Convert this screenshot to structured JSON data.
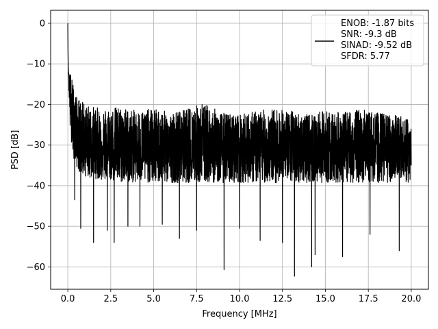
{
  "chart_data": {
    "type": "line",
    "title": "",
    "xlabel": "Frequency [MHz]",
    "ylabel": "PSD [dB]",
    "xlim": [
      -1.0,
      21.0
    ],
    "ylim": [
      -65.5,
      3.2
    ],
    "x_ticks": [
      0.0,
      2.5,
      5.0,
      7.5,
      10.0,
      12.5,
      15.0,
      17.5,
      20.0
    ],
    "x_tick_labels": [
      "0.0",
      "2.5",
      "5.0",
      "7.5",
      "10.0",
      "12.5",
      "15.0",
      "17.5",
      "20.0"
    ],
    "y_ticks": [
      0,
      -10,
      -20,
      -30,
      -40,
      -50,
      -60
    ],
    "y_tick_labels": [
      "0",
      "−10",
      "−20",
      "−30",
      "−40",
      "−50",
      "−60"
    ],
    "grid": true,
    "legend_position": "top-right",
    "series": [
      {
        "name": "ENOB: -1.87 bits\nSNR: -9.3 dB\nSINAD: -9.52 dB\nSFDR: 5.77",
        "color": "#000000",
        "x": [
          0.0,
          0.02,
          0.05,
          0.08,
          0.1,
          0.15,
          0.2,
          0.3,
          0.4,
          0.5,
          0.6,
          0.8,
          1.0,
          1.3,
          1.6,
          2.0,
          2.5,
          3.0,
          3.5,
          4.0,
          5.0,
          6.0,
          7.0,
          8.0,
          9.0,
          10.0,
          11.0,
          12.0,
          13.0,
          14.0,
          15.0,
          16.0,
          17.0,
          18.0,
          19.0,
          20.0
        ],
        "y": [
          0.0,
          -5.0,
          -12.0,
          -14.0,
          -16.0,
          -19.0,
          -22.0,
          -24.0,
          -26.0,
          -27.0,
          -28.0,
          -29.0,
          -29.5,
          -30.0,
          -30.0,
          -30.5,
          -30.5,
          -31.0,
          -31.0,
          -31.0,
          -31.0,
          -31.0,
          -31.0,
          -31.0,
          -31.0,
          -31.0,
          -31.0,
          -31.0,
          -31.0,
          -31.0,
          -31.0,
          -31.0,
          -31.0,
          -31.0,
          -31.0,
          -31.0
        ]
      }
    ],
    "envelope_upper": [
      [
        0.15,
        -12.0
      ],
      [
        0.5,
        -18.0
      ],
      [
        1.0,
        -20.0
      ],
      [
        2.0,
        -21.0
      ],
      [
        3.0,
        -20.5
      ],
      [
        4.0,
        -21.5
      ],
      [
        5.0,
        -21.0
      ],
      [
        6.0,
        -22.0
      ],
      [
        7.0,
        -21.0
      ],
      [
        7.8,
        -19.5
      ],
      [
        9.0,
        -22.0
      ],
      [
        10.0,
        -22.5
      ],
      [
        11.0,
        -21.5
      ],
      [
        12.0,
        -21.0
      ],
      [
        13.0,
        -21.5
      ],
      [
        14.0,
        -22.5
      ],
      [
        15.0,
        -21.5
      ],
      [
        16.0,
        -22.0
      ],
      [
        17.0,
        -21.0
      ],
      [
        18.0,
        -22.0
      ],
      [
        19.0,
        -22.5
      ],
      [
        20.0,
        -23.5
      ]
    ],
    "deep_nulls": [
      [
        0.4,
        -43.5
      ],
      [
        0.75,
        -50.5
      ],
      [
        1.5,
        -54.0
      ],
      [
        2.3,
        -51.0
      ],
      [
        2.7,
        -54.0
      ],
      [
        3.5,
        -50.0
      ],
      [
        4.2,
        -50.0
      ],
      [
        5.5,
        -49.5
      ],
      [
        6.5,
        -53.0
      ],
      [
        7.5,
        -51.0
      ],
      [
        9.1,
        -60.7
      ],
      [
        10.0,
        -50.5
      ],
      [
        11.2,
        -53.5
      ],
      [
        12.5,
        -54.0
      ],
      [
        13.2,
        -62.3
      ],
      [
        14.2,
        -60.0
      ],
      [
        14.4,
        -57.0
      ],
      [
        16.0,
        -57.5
      ],
      [
        17.6,
        -52.0
      ],
      [
        19.3,
        -56.0
      ]
    ],
    "noise_floor_mean": -31.0,
    "noise_floor_spread": 7.5
  }
}
